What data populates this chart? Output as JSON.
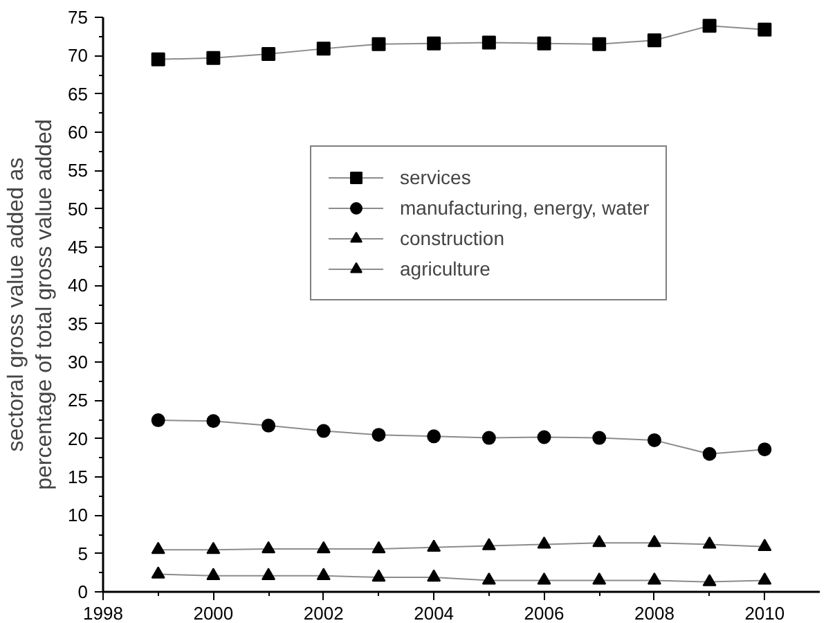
{
  "chart_data": {
    "type": "line",
    "ylabel": "sectoral gross value added as\npercentage of total gross value added",
    "x": [
      1999,
      2000,
      2001,
      2002,
      2003,
      2004,
      2005,
      2006,
      2007,
      2008,
      2009,
      2010
    ],
    "series": [
      {
        "name": "services",
        "color": "#000000",
        "marker": "square",
        "values": [
          69.5,
          69.7,
          70.2,
          70.9,
          71.5,
          71.6,
          71.7,
          71.6,
          71.5,
          72.0,
          73.9,
          73.4
        ]
      },
      {
        "name": "manufacturing, energy, water",
        "color": "#000000",
        "marker": "circle",
        "values": [
          22.4,
          22.3,
          21.7,
          21.0,
          20.5,
          20.3,
          20.1,
          20.2,
          20.1,
          19.8,
          18.0,
          18.6
        ]
      },
      {
        "name": "construction",
        "color": "#000000",
        "marker": "triangle",
        "values": [
          5.5,
          5.5,
          5.6,
          5.6,
          5.6,
          5.8,
          6.0,
          6.2,
          6.4,
          6.4,
          6.2,
          5.9
        ]
      },
      {
        "name": "agriculture",
        "color": "#000000",
        "marker": "triangle",
        "values": [
          2.3,
          2.1,
          2.1,
          2.1,
          1.9,
          1.9,
          1.5,
          1.5,
          1.5,
          1.5,
          1.3,
          1.5
        ]
      }
    ],
    "xlim": [
      1998,
      2011
    ],
    "ylim": [
      0,
      75
    ],
    "xticks": [
      1998,
      2000,
      2002,
      2004,
      2006,
      2008,
      2010
    ],
    "yticks": [
      0,
      5,
      10,
      15,
      20,
      25,
      30,
      35,
      40,
      45,
      50,
      55,
      60,
      65,
      70,
      75
    ],
    "grid": false,
    "legend": "right",
    "line_style": "solid"
  }
}
